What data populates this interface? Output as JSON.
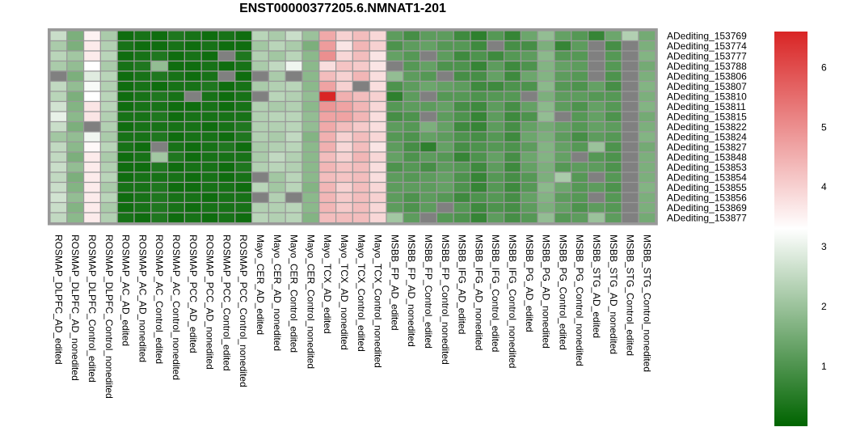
{
  "chart_data": {
    "type": "heatmap",
    "title": "ENST00000377205.6.NMNAT1-201",
    "xlabel": "",
    "ylabel": "",
    "rows": [
      "ADediting_153769",
      "ADediting_153774",
      "ADediting_153777",
      "ADediting_153788",
      "ADediting_153806",
      "ADediting_153807",
      "ADediting_153810",
      "ADediting_153811",
      "ADediting_153815",
      "ADediting_153822",
      "ADediting_153824",
      "ADediting_153827",
      "ADediting_153848",
      "ADediting_153853",
      "ADediting_153854",
      "ADediting_153855",
      "ADediting_153856",
      "ADediting_153869",
      "ADediting_153877"
    ],
    "columns": [
      "ROSMAP_DLPFC_AD_edited",
      "ROSMAP_DLPFC_AD_nonedited",
      "ROSMAP_DLPFC_Control_edited",
      "ROSMAP_DLPFC_Control_nonedited",
      "ROSMAP_AC_AD_edited",
      "ROSMAP_AC_AD_nonedited",
      "ROSMAP_AC_Control_edited",
      "ROSMAP_AC_Control_nonedited",
      "ROSMAP_PCC_AD_edited",
      "ROSMAP_PCC_AD_nonedited",
      "ROSMAP_PCC_Control_edited",
      "ROSMAP_PCC_Control_nonedited",
      "Mayo_CER_AD_edited",
      "Mayo_CER_AD_nonedited",
      "Mayo_CER_Control_edited",
      "Mayo_CER_Control_nonedited",
      "Mayo_TCX_AD_edited",
      "Mayo_TCX_AD_nonedited",
      "Mayo_TCX_Control_edited",
      "Mayo_TCX_Control_nonedited",
      "MSBB_FP_AD_edited",
      "MSBB_FP_AD_nonedited",
      "MSBB_FP_Control_edited",
      "MSBB_FP_Control_nonedited",
      "MSBB_IFG_AD_edited",
      "MSBB_IFG_AD_nonedited",
      "MSBB_IFG_Control_edited",
      "MSBB_IFG_Control_nonedited",
      "MSBB_PG_AD_edited",
      "MSBB_PG_AD_nonedited",
      "MSBB_PG_Control_edited",
      "MSBB_PG_Control_nonedited",
      "MSBB_STG_AD_edited",
      "MSBB_STG_AD_nonedited",
      "MSBB_STG_Control_edited",
      "MSBB_STG_Control_nonedited"
    ],
    "values": [
      [
        2.6,
        1.6,
        3.5,
        2.2,
        0.2,
        0.3,
        0.2,
        0.4,
        0.3,
        0.2,
        0.3,
        0.2,
        2.4,
        2.2,
        2.6,
        2.0,
        4.6,
        4.0,
        4.3,
        3.9,
        1.2,
        0.9,
        1.2,
        1.2,
        0.8,
        0.6,
        1.1,
        0.7,
        1.4,
        1.9,
        1.3,
        1.1,
        0.7,
        1.4,
        2.3,
        1.5
      ],
      [
        2.2,
        1.6,
        3.6,
        2.3,
        0.3,
        0.2,
        0.2,
        0.3,
        0.2,
        0.3,
        0.2,
        0.2,
        2.1,
        2.4,
        2.2,
        1.6,
        4.8,
        3.7,
        4.4,
        4.0,
        1.0,
        1.2,
        1.3,
        1.1,
        1.1,
        0.8,
        null,
        0.9,
        0.9,
        1.6,
        0.7,
        1.2,
        null,
        0.9,
        null,
        1.6
      ],
      [
        2.4,
        2.1,
        3.6,
        2.4,
        0.2,
        0.3,
        0.4,
        0.2,
        0.3,
        0.2,
        null,
        0.4,
        2.3,
        2.1,
        2.4,
        1.8,
        5.0,
        3.9,
        4.3,
        3.7,
        1.3,
        1.1,
        null,
        1.2,
        0.8,
        1.0,
        0.8,
        1.1,
        1.2,
        1.8,
        1.1,
        1.1,
        null,
        1.1,
        null,
        1.7
      ],
      [
        2.2,
        1.9,
        3.3,
        2.2,
        0.3,
        0.4,
        1.9,
        0.2,
        0.2,
        0.3,
        0.2,
        0.3,
        2.2,
        2.5,
        3.1,
        1.8,
        3.8,
        4.2,
        4.1,
        3.7,
        null,
        1.1,
        1.3,
        1.0,
        1.0,
        0.7,
        1.2,
        0.8,
        1.0,
        1.7,
        1.3,
        1.2,
        null,
        1.1,
        null,
        1.5
      ],
      [
        null,
        1.6,
        2.9,
        2.4,
        0.2,
        0.3,
        0.4,
        0.3,
        0.2,
        0.3,
        null,
        0.2,
        null,
        2.2,
        null,
        1.8,
        4.3,
        4.0,
        4.4,
        3.8,
        1.9,
        1.2,
        1.1,
        null,
        0.9,
        0.9,
        1.3,
        0.8,
        1.4,
        1.7,
        1.2,
        1.1,
        null,
        1.0,
        null,
        1.6
      ],
      [
        2.5,
        1.9,
        3.2,
        2.3,
        0.2,
        0.3,
        0.2,
        0.3,
        0.3,
        0.4,
        0.2,
        0.3,
        2.2,
        2.3,
        2.4,
        1.8,
        4.7,
        4.0,
        null,
        3.8,
        1.0,
        1.2,
        1.4,
        1.3,
        1.2,
        0.8,
        0.8,
        1.0,
        1.0,
        1.8,
        1.1,
        1.0,
        1.3,
        0.9,
        null,
        1.7
      ],
      [
        2.4,
        1.6,
        3.3,
        2.4,
        0.2,
        0.3,
        0.4,
        0.3,
        null,
        0.3,
        0.2,
        0.3,
        null,
        2.4,
        2.3,
        1.9,
        6.6,
        4.5,
        4.3,
        4.0,
        0.6,
        1.2,
        null,
        1.1,
        1.1,
        1.0,
        1.1,
        1.1,
        null,
        1.6,
        1.2,
        1.2,
        1.1,
        1.1,
        null,
        1.6
      ],
      [
        2.7,
        1.7,
        3.7,
        2.4,
        0.2,
        0.3,
        0.3,
        0.2,
        0.2,
        0.3,
        0.2,
        0.3,
        2.3,
        2.2,
        2.3,
        1.8,
        4.9,
        4.7,
        4.4,
        3.9,
        1.1,
        1.2,
        1.2,
        1.3,
        0.9,
        0.8,
        1.2,
        0.9,
        1.3,
        1.8,
        1.2,
        1.0,
        1.3,
        1.1,
        null,
        1.7
      ],
      [
        3.0,
        1.8,
        3.7,
        2.3,
        0.3,
        0.3,
        0.4,
        0.2,
        0.3,
        0.3,
        0.3,
        0.3,
        2.3,
        2.4,
        2.4,
        1.9,
        4.7,
        4.7,
        4.4,
        3.8,
        0.9,
        1.0,
        null,
        1.2,
        1.0,
        0.7,
        1.2,
        0.8,
        1.0,
        1.9,
        null,
        1.1,
        1.3,
        1.0,
        null,
        1.5
      ],
      [
        2.6,
        1.6,
        null,
        2.3,
        0.2,
        0.3,
        0.3,
        0.3,
        0.3,
        0.2,
        0.3,
        0.4,
        2.3,
        2.3,
        2.4,
        1.9,
        4.6,
        4.3,
        4.1,
        3.8,
        1.2,
        1.1,
        1.6,
        1.3,
        0.8,
        0.7,
        1.2,
        0.9,
        1.3,
        1.5,
        1.3,
        1.1,
        1.3,
        1.2,
        null,
        1.6
      ],
      [
        2.1,
        1.9,
        3.1,
        2.2,
        0.3,
        0.3,
        0.4,
        0.2,
        0.3,
        0.3,
        0.2,
        0.4,
        2.3,
        2.2,
        2.5,
        1.7,
        4.5,
        4.0,
        4.3,
        3.9,
        1.1,
        1.0,
        1.3,
        1.2,
        1.0,
        0.9,
        1.1,
        0.8,
        1.4,
        1.6,
        1.2,
        0.9,
        1.2,
        1.1,
        null,
        1.7
      ],
      [
        2.5,
        1.8,
        3.4,
        2.4,
        0.3,
        0.2,
        null,
        0.3,
        0.2,
        0.3,
        0.4,
        0.2,
        2.2,
        2.3,
        2.4,
        1.8,
        4.5,
        3.9,
        4.3,
        3.7,
        1.2,
        0.9,
        0.6,
        1.3,
        0.9,
        1.0,
        1.1,
        1.0,
        1.2,
        1.7,
        1.3,
        1.1,
        2.0,
        1.0,
        null,
        1.5
      ],
      [
        2.5,
        1.6,
        3.6,
        2.2,
        0.2,
        0.3,
        2.1,
        0.4,
        0.2,
        0.3,
        0.3,
        0.3,
        2.2,
        2.5,
        2.3,
        1.8,
        4.3,
        4.0,
        4.4,
        3.9,
        1.3,
        1.0,
        1.2,
        1.1,
        0.7,
        1.0,
        1.3,
        0.9,
        1.4,
        1.7,
        1.3,
        null,
        1.1,
        1.0,
        null,
        1.6
      ],
      [
        2.6,
        1.9,
        3.6,
        2.3,
        0.2,
        0.2,
        0.4,
        0.2,
        0.3,
        0.3,
        0.2,
        0.4,
        2.3,
        2.4,
        2.3,
        1.8,
        4.4,
        4.2,
        4.3,
        3.8,
        1.0,
        1.1,
        0.9,
        1.2,
        1.1,
        0.8,
        1.2,
        0.8,
        1.3,
        1.6,
        1.1,
        1.2,
        1.2,
        1.0,
        null,
        1.6
      ],
      [
        2.5,
        1.6,
        3.6,
        2.4,
        0.2,
        0.3,
        0.3,
        0.3,
        0.2,
        0.3,
        0.2,
        0.3,
        null,
        2.1,
        2.4,
        1.8,
        4.3,
        4.2,
        4.3,
        3.8,
        1.2,
        1.1,
        1.2,
        1.3,
        1.0,
        0.7,
        1.1,
        0.9,
        1.1,
        1.6,
        2.2,
        1.1,
        null,
        1.1,
        null,
        1.6
      ],
      [
        2.6,
        1.7,
        3.6,
        2.2,
        0.3,
        0.3,
        0.4,
        0.2,
        0.2,
        0.3,
        0.3,
        0.2,
        2.4,
        2.1,
        2.4,
        1.7,
        4.4,
        4.0,
        4.3,
        3.9,
        1.2,
        1.2,
        1.2,
        1.3,
        1.0,
        0.7,
        1.1,
        0.8,
        1.1,
        1.8,
        1.4,
        1.1,
        1.2,
        1.0,
        null,
        1.7
      ],
      [
        2.7,
        1.9,
        3.6,
        2.4,
        0.2,
        0.3,
        0.4,
        0.3,
        0.3,
        0.2,
        0.3,
        0.3,
        null,
        2.3,
        null,
        1.8,
        4.4,
        4.1,
        4.3,
        4.0,
        1.2,
        1.0,
        1.2,
        1.1,
        0.8,
        1.0,
        1.1,
        0.9,
        1.3,
        1.7,
        1.2,
        1.1,
        null,
        1.1,
        null,
        1.6
      ],
      [
        2.6,
        1.7,
        3.6,
        2.2,
        0.2,
        0.3,
        0.4,
        0.3,
        0.2,
        0.3,
        0.3,
        0.3,
        2.3,
        2.3,
        2.4,
        1.8,
        4.4,
        4.1,
        4.3,
        3.9,
        1.2,
        1.0,
        1.2,
        null,
        1.1,
        0.8,
        1.0,
        0.9,
        1.2,
        1.6,
        1.3,
        1.0,
        1.2,
        1.1,
        null,
        1.6
      ],
      [
        2.5,
        1.8,
        3.6,
        2.3,
        0.3,
        0.2,
        0.4,
        0.2,
        0.3,
        0.2,
        0.3,
        0.2,
        2.4,
        2.3,
        2.4,
        1.7,
        4.3,
        4.3,
        4.3,
        3.9,
        2.1,
        1.2,
        null,
        1.1,
        1.0,
        0.7,
        1.2,
        0.9,
        1.1,
        1.9,
        1.1,
        1.2,
        2.0,
        1.2,
        null,
        1.5
      ]
    ],
    "colorbar": {
      "min": 0,
      "max": 6.6,
      "ticks": [
        1,
        2,
        3,
        4,
        5,
        6
      ],
      "colors": [
        "#006400",
        "#ffffff",
        "#d92525"
      ]
    },
    "na_color": "#808080",
    "grid_color": "#999999"
  }
}
